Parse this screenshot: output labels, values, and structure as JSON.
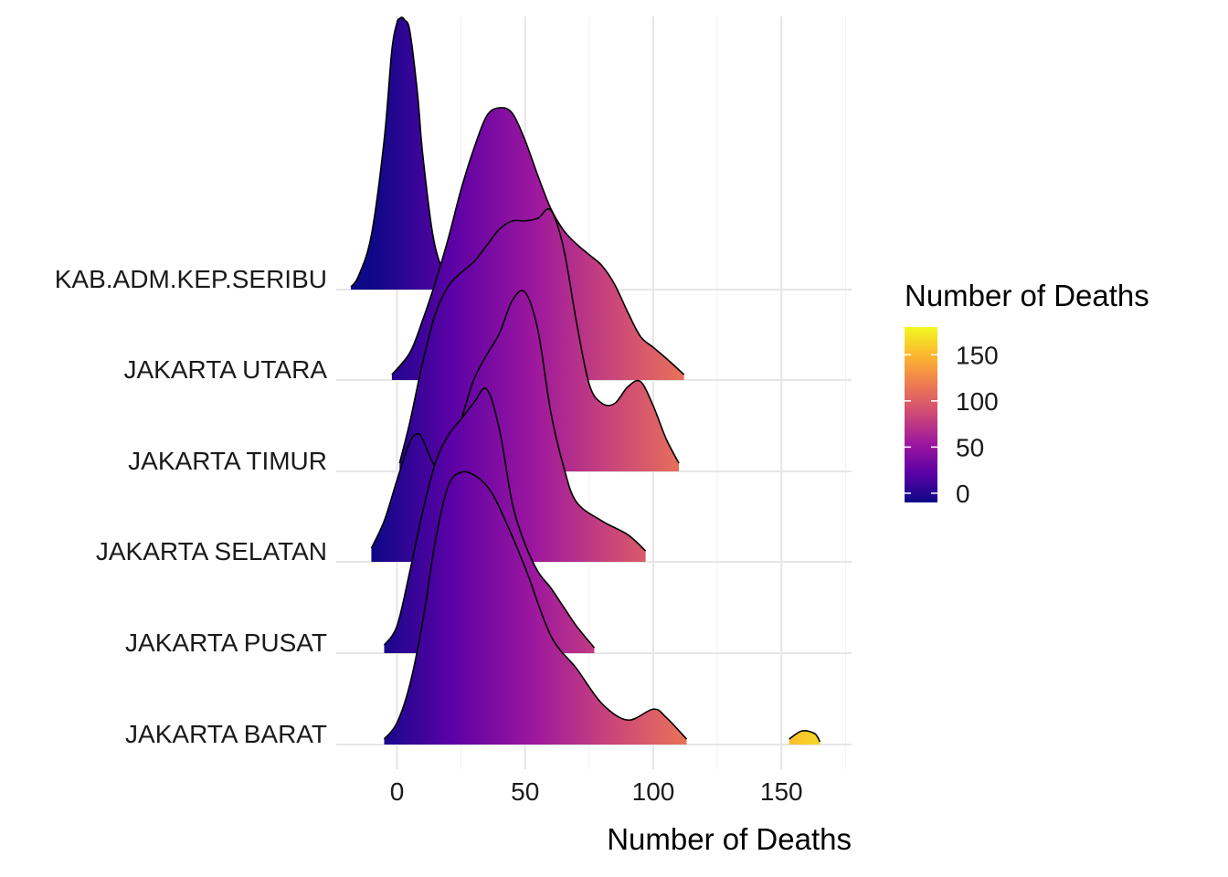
{
  "chart_data": {
    "type": "ridgeline",
    "title": "",
    "xlabel": "Number of Deaths",
    "ylabel": "",
    "xlim": [
      -20,
      178
    ],
    "x_ticks": [
      0,
      50,
      100,
      150
    ],
    "grid": true,
    "legend": {
      "title": "Number of Deaths",
      "placement": "right",
      "range": [
        -10,
        180
      ],
      "ticks": [
        0,
        50,
        100,
        150
      ]
    },
    "colors": {
      "scale": [
        "#0d0887",
        "#5c01a6",
        "#9c179e",
        "#cc4778",
        "#ed7953",
        "#fdb42f",
        "#f0f921"
      ],
      "outline": "#000000",
      "grid": "#e6e6e6"
    },
    "series": [
      {
        "name": "JAKARTA BARAT",
        "x": [
          -5,
          0,
          5,
          10,
          15,
          20,
          25,
          30,
          35,
          40,
          50,
          60,
          70,
          80,
          90,
          100,
          105,
          113,
          150,
          153,
          158,
          163,
          165
        ],
        "y": [
          0.02,
          0.08,
          0.22,
          0.45,
          0.75,
          0.95,
          1.0,
          0.99,
          0.95,
          0.87,
          0.65,
          0.4,
          0.28,
          0.15,
          0.09,
          0.13,
          0.1,
          0.02,
          null,
          0.02,
          0.05,
          0.04,
          0.01
        ]
      },
      {
        "name": "JAKARTA PUSAT",
        "x": [
          -5,
          0,
          5,
          10,
          15,
          20,
          25,
          30,
          35,
          40,
          45,
          50,
          55,
          60,
          65,
          70,
          77
        ],
        "y": [
          0.03,
          0.1,
          0.3,
          0.52,
          0.7,
          0.8,
          0.86,
          0.92,
          0.97,
          0.82,
          0.55,
          0.4,
          0.3,
          0.24,
          0.17,
          0.1,
          0.02
        ]
      },
      {
        "name": "JAKARTA SELATAN",
        "x": [
          -10,
          -5,
          0,
          5,
          8,
          10,
          15,
          20,
          25,
          30,
          35,
          40,
          45,
          50,
          55,
          60,
          65,
          70,
          80,
          90,
          97
        ],
        "y": [
          0.05,
          0.15,
          0.3,
          0.44,
          0.47,
          0.45,
          0.35,
          0.37,
          0.52,
          0.67,
          0.76,
          0.84,
          0.96,
          0.99,
          0.85,
          0.55,
          0.35,
          0.22,
          0.15,
          0.1,
          0.04
        ]
      },
      {
        "name": "JAKARTA TIMUR",
        "x": [
          1,
          5,
          10,
          15,
          20,
          25,
          30,
          35,
          40,
          45,
          50,
          55,
          60,
          65,
          70,
          75,
          80,
          85,
          90,
          95,
          100,
          105,
          110
        ],
        "y": [
          0.03,
          0.18,
          0.4,
          0.58,
          0.68,
          0.73,
          0.77,
          0.83,
          0.89,
          0.92,
          0.92,
          0.93,
          0.96,
          0.82,
          0.55,
          0.32,
          0.25,
          0.25,
          0.31,
          0.33,
          0.24,
          0.12,
          0.03
        ]
      },
      {
        "name": "JAKARTA UTARA",
        "x": [
          -2,
          5,
          10,
          15,
          20,
          25,
          30,
          35,
          40,
          45,
          50,
          55,
          60,
          65,
          70,
          75,
          80,
          85,
          90,
          95,
          100,
          105,
          112
        ],
        "y": [
          0.02,
          0.1,
          0.22,
          0.36,
          0.52,
          0.7,
          0.85,
          0.97,
          1.0,
          0.98,
          0.88,
          0.75,
          0.63,
          0.55,
          0.5,
          0.46,
          0.42,
          0.35,
          0.25,
          0.16,
          0.12,
          0.08,
          0.02
        ]
      },
      {
        "name": "KAB.ADM.KEP.SERIBU",
        "x": [
          -18,
          -15,
          -10,
          -5,
          -2,
          0,
          1,
          2,
          3,
          5,
          8,
          10,
          14,
          18,
          23
        ],
        "y": [
          0.01,
          0.05,
          0.2,
          0.55,
          0.88,
          0.98,
          0.995,
          1.0,
          0.99,
          0.95,
          0.72,
          0.5,
          0.2,
          0.07,
          0.01
        ]
      }
    ]
  }
}
